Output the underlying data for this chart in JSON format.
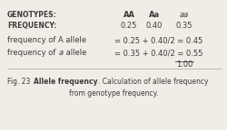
{
  "bg_color": "#f0ece6",
  "text_color": "#3d3d3d",
  "figsize": [
    2.5,
    1.44
  ],
  "dpi": 100,
  "genotypes_label": "GENOTYPES:",
  "frequency_label": "FREQUENCY:",
  "col1": "AA",
  "col2": "Aa",
  "col3": "aa",
  "freq1": "0.25",
  "freq2": "0.40",
  "freq3": "0.35",
  "row2_label": "frequency of A allele",
  "row2_formula": "= 0.25 + 0.40/2 = 0.45",
  "row3_label_pre": "frequency of ",
  "row3_label_italic": "a",
  "row3_label_post": " allele",
  "row3_formula": "= 0.35 + 0.40/2 = 0.55",
  "underline_val": "1.00",
  "caption_pre": "Fig. 23 ",
  "caption_bold": "Allele frequency",
  "caption_post": ". Calculation of allele frequency",
  "caption_line2": "from genotype frequency.",
  "fs_header": 5.5,
  "fs_body": 6.0,
  "fs_caption": 5.5
}
